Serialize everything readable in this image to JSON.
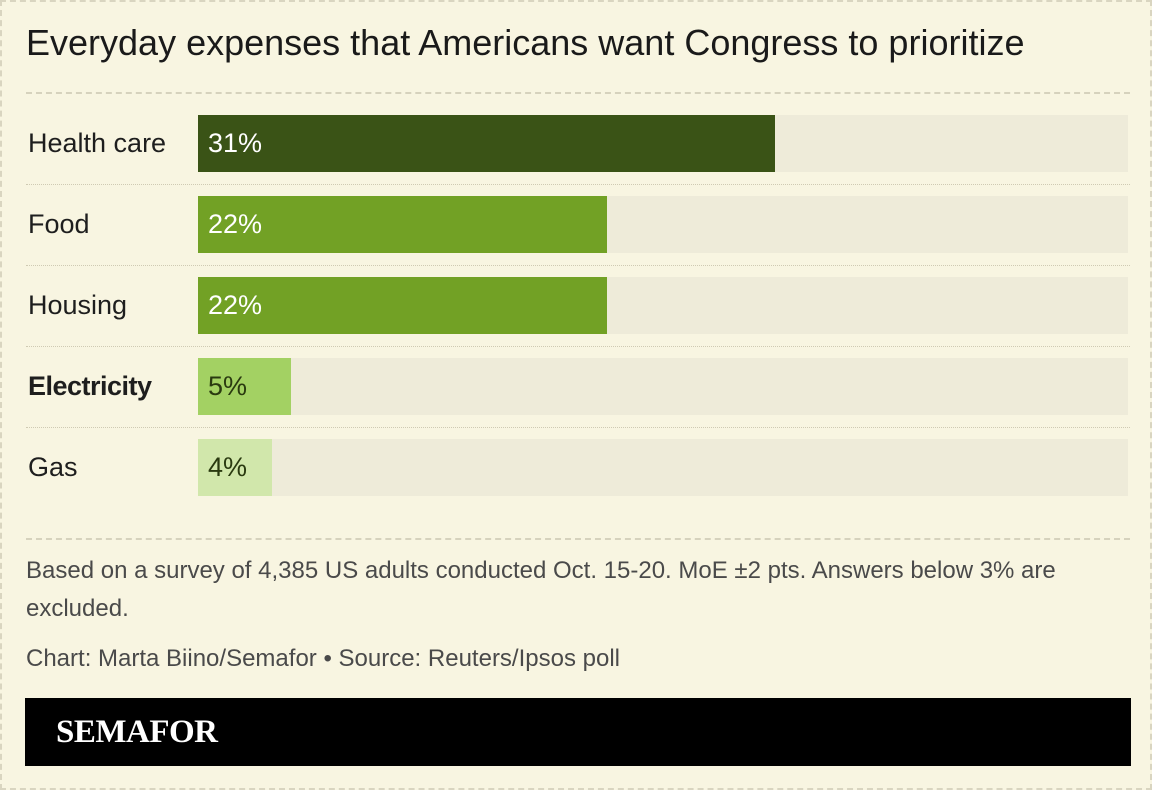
{
  "header": {
    "title": "Everyday expenses that Americans want Congress to prioritize"
  },
  "chart_data": {
    "type": "bar",
    "orientation": "horizontal",
    "categories": [
      "Health care",
      "Food",
      "Housing",
      "Electricity",
      "Gas"
    ],
    "values": [
      31,
      22,
      22,
      5,
      4
    ],
    "value_labels": [
      "31%",
      "22%",
      "22%",
      "5%",
      "4%"
    ],
    "highlighted_category": "Electricity",
    "bar_colors": [
      "#3a5316",
      "#72a125",
      "#72a125",
      "#a3d163",
      "#d1e7ab"
    ],
    "label_colors": [
      "#ffffff",
      "#ffffff",
      "#ffffff",
      "#2a3a10",
      "#2a3a10"
    ],
    "track_color": "#eeebd9",
    "xlim": [
      0,
      50
    ],
    "grid": false,
    "legend": "none"
  },
  "footer": {
    "note": "Based on a survey of 4,385 US adults conducted Oct. 15-20. MoE ±2 pts. Answers below 3% are excluded.",
    "credit": "Chart: Marta Biino/Semafor • Source: Reuters/Ipsos poll",
    "brand": "SEMAFOR"
  },
  "colors": {
    "background": "#f8f5e1",
    "footer_bar": "#000000",
    "text": "#1e1e1e",
    "muted_text": "#4a4a4a"
  }
}
